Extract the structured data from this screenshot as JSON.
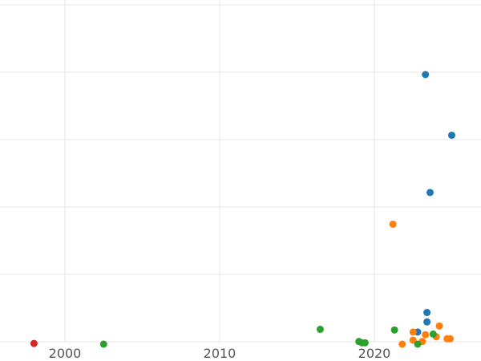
{
  "chart_data": {
    "type": "scatter",
    "title": "",
    "xlabel": "",
    "ylabel": "",
    "grid": true,
    "legend": "none",
    "x_ticks": [
      "2000",
      "2010",
      "2020"
    ],
    "x_tick_values": [
      2000,
      2010,
      2020
    ],
    "xlim": [
      1996,
      2027
    ],
    "ylim": [
      0,
      5
    ],
    "y_gridlines": [
      0,
      1,
      2,
      3,
      4,
      5
    ],
    "series": [
      {
        "color": "#1f77b4",
        "points": [
          {
            "x": 2023.3,
            "y": 4.0
          },
          {
            "x": 2025.0,
            "y": 3.1
          },
          {
            "x": 2023.6,
            "y": 2.25
          },
          {
            "x": 2023.4,
            "y": 0.47
          },
          {
            "x": 2023.4,
            "y": 0.33
          },
          {
            "x": 2022.8,
            "y": 0.18
          }
        ]
      },
      {
        "color": "#ff7f0e",
        "points": [
          {
            "x": 2021.2,
            "y": 1.78
          },
          {
            "x": 2024.2,
            "y": 0.27
          },
          {
            "x": 2022.5,
            "y": 0.18
          },
          {
            "x": 2023.3,
            "y": 0.14
          },
          {
            "x": 2024.0,
            "y": 0.11
          },
          {
            "x": 2024.7,
            "y": 0.08
          },
          {
            "x": 2024.9,
            "y": 0.08
          },
          {
            "x": 2022.5,
            "y": 0.06
          },
          {
            "x": 2023.1,
            "y": 0.04
          },
          {
            "x": 2021.8,
            "y": 0.0
          }
        ]
      },
      {
        "color": "#2ca02c",
        "points": [
          {
            "x": 2002.5,
            "y": 0.0
          },
          {
            "x": 2016.5,
            "y": 0.22
          },
          {
            "x": 2021.3,
            "y": 0.21
          },
          {
            "x": 2023.8,
            "y": 0.15
          },
          {
            "x": 2019.0,
            "y": 0.04
          },
          {
            "x": 2019.2,
            "y": 0.02
          },
          {
            "x": 2019.4,
            "y": 0.02
          },
          {
            "x": 2022.8,
            "y": 0.0
          }
        ]
      },
      {
        "color": "#d62728",
        "points": [
          {
            "x": 1998.0,
            "y": 0.01
          }
        ]
      }
    ]
  }
}
